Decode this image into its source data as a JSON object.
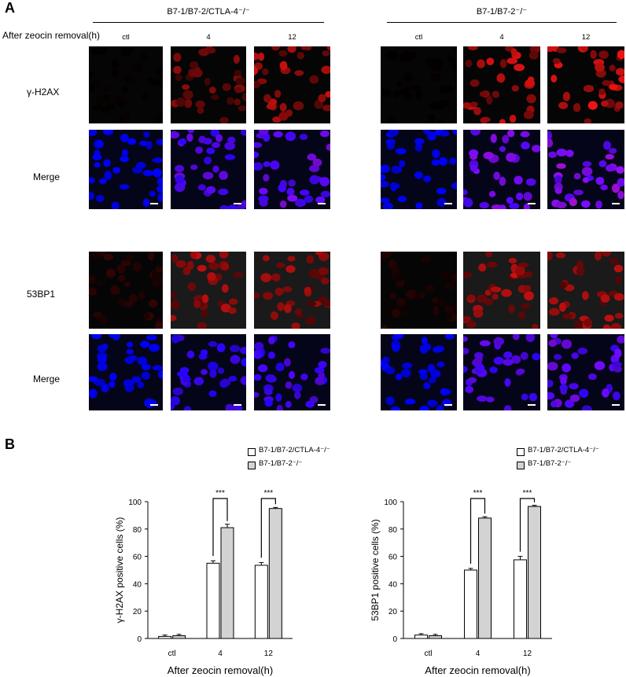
{
  "panel_a": {
    "letter": "A",
    "timepoint_label": "After zeocin removal(h)",
    "groups": [
      {
        "title": "B7-1/B7-2/CTLA-4⁻/⁻",
        "columns": [
          "ctl",
          "4",
          "12"
        ]
      },
      {
        "title": "B7-1/B7-2⁻/⁻",
        "columns": [
          "ctl",
          "4",
          "12"
        ]
      }
    ],
    "row_labels": [
      "γ-H2AX",
      "Merge",
      "53BP1",
      "Merge"
    ]
  },
  "panel_b": {
    "letter": "B",
    "legend": [
      "B7-1/B7-2/CTLA-4⁻/⁻",
      "B7-1/B7-2⁻/⁻"
    ],
    "colors": {
      "knockout_ctla4": "#ffffff",
      "knockout_b7": "#d3d3d3",
      "stroke": "#000000"
    },
    "significance": "***"
  },
  "chart_data": [
    {
      "type": "bar",
      "title": "",
      "xlabel": "After zeocin removal(h)",
      "ylabel": "γ-H2AX positive cells (%)",
      "categories": [
        "ctl",
        "4",
        "12"
      ],
      "ylim": [
        0,
        100
      ],
      "yticks": [
        0,
        20,
        40,
        60,
        80,
        100
      ],
      "series": [
        {
          "name": "B7-1/B7-2/CTLA-4⁻/⁻",
          "values": [
            1.5,
            55,
            53.5
          ],
          "errors": [
            1,
            1.8,
            2
          ]
        },
        {
          "name": "B7-1/B7-2⁻/⁻",
          "values": [
            2,
            81,
            95
          ],
          "errors": [
            1,
            2.5,
            0.8
          ]
        }
      ],
      "significance": [
        {
          "category": "4",
          "label": "***"
        },
        {
          "category": "12",
          "label": "***"
        }
      ]
    },
    {
      "type": "bar",
      "title": "",
      "xlabel": "After zeocin removal(h)",
      "ylabel": "53BP1 positive cells (%)",
      "categories": [
        "ctl",
        "4",
        "12"
      ],
      "ylim": [
        0,
        100
      ],
      "yticks": [
        0,
        20,
        40,
        60,
        80,
        100
      ],
      "series": [
        {
          "name": "B7-1/B7-2/CTLA-4⁻/⁻",
          "values": [
            2.5,
            50,
            57.5
          ],
          "errors": [
            1,
            1.2,
            2.5
          ]
        },
        {
          "name": "B7-1/B7-2⁻/⁻",
          "values": [
            2,
            88,
            96.5
          ],
          "errors": [
            1,
            1,
            0.8
          ]
        }
      ],
      "significance": [
        {
          "category": "4",
          "label": "***"
        },
        {
          "category": "12",
          "label": "***"
        }
      ]
    }
  ]
}
